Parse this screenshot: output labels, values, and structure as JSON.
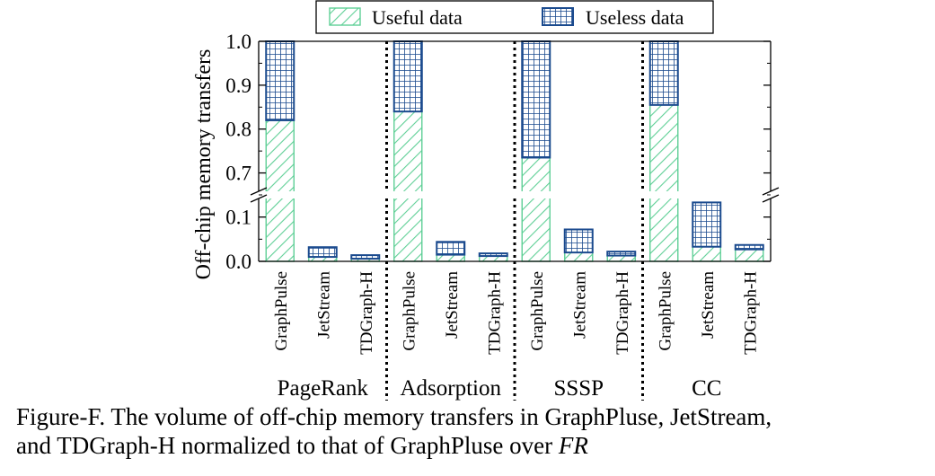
{
  "chart_data": {
    "type": "bar",
    "stacked": true,
    "ylabel": "Off-chip memory transfers",
    "broken_axis": {
      "lower_range": [
        0,
        0.15
      ],
      "upper_range": [
        0.65,
        1.0
      ]
    },
    "yticks_lower": [
      "0.0",
      "0.1"
    ],
    "yticks_upper": [
      "0.7",
      "0.8",
      "0.9",
      "1.0"
    ],
    "legend": {
      "placement": "top",
      "entries": [
        "Useful data",
        "Useless data"
      ]
    },
    "colors": {
      "useful": "#5fcf96",
      "useless": "#1a4a8e"
    },
    "groups": [
      {
        "name": "PageRank",
        "bars": [
          {
            "label": "GraphPulse",
            "useful": 0.82,
            "useless": 0.18
          },
          {
            "label": "JetStream",
            "useful": 0.01,
            "useless": 0.022
          },
          {
            "label": "TDGraph-H",
            "useful": 0.006,
            "useless": 0.008
          }
        ]
      },
      {
        "name": "Adsorption",
        "bars": [
          {
            "label": "GraphPulse",
            "useful": 0.84,
            "useless": 0.16
          },
          {
            "label": "JetStream",
            "useful": 0.015,
            "useless": 0.029
          },
          {
            "label": "TDGraph-H",
            "useful": 0.012,
            "useless": 0.006
          }
        ]
      },
      {
        "name": "SSSP",
        "bars": [
          {
            "label": "GraphPulse",
            "useful": 0.735,
            "useless": 0.265
          },
          {
            "label": "JetStream",
            "useful": 0.02,
            "useless": 0.052
          },
          {
            "label": "TDGraph-H",
            "useful": 0.013,
            "useless": 0.009
          }
        ]
      },
      {
        "name": "CC",
        "bars": [
          {
            "label": "GraphPulse",
            "useful": 0.855,
            "useless": 0.145
          },
          {
            "label": "JetStream",
            "useful": 0.033,
            "useless": 0.1
          },
          {
            "label": "TDGraph-H",
            "useful": 0.027,
            "useless": 0.01
          }
        ]
      }
    ]
  },
  "caption": {
    "line1": "Figure-F. The volume of off-chip memory transfers in GraphPluse, JetStream,",
    "line2_text": "and TDGraph-H normalized to that of GraphPluse over ",
    "line2_italic": "FR"
  }
}
